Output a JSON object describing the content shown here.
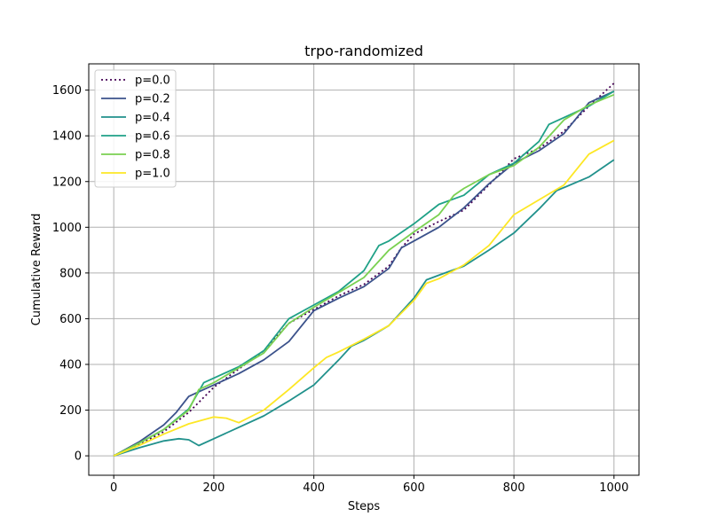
{
  "chart_data": {
    "type": "line",
    "title": "trpo-randomized",
    "xlabel": "Steps",
    "ylabel": "Cumulative Reward",
    "xlim": [
      -50,
      1050
    ],
    "ylim": [
      -85,
      1715
    ],
    "xticks": [
      0,
      200,
      400,
      600,
      800,
      1000
    ],
    "yticks": [
      0,
      200,
      400,
      600,
      800,
      1000,
      1200,
      1400,
      1600
    ],
    "grid": true,
    "legend_position": "top-left",
    "series": [
      {
        "name": "p=0.0",
        "color": "#440154",
        "style": "dotted",
        "x": [
          0,
          50,
          100,
          150,
          200,
          250,
          300,
          350,
          400,
          450,
          500,
          550,
          575,
          600,
          650,
          700,
          750,
          800,
          850,
          900,
          950,
          1000
        ],
        "y": [
          0,
          50,
          105,
          190,
          300,
          380,
          460,
          580,
          640,
          700,
          750,
          830,
          910,
          970,
          1025,
          1075,
          1185,
          1300,
          1345,
          1420,
          1530,
          1630
        ]
      },
      {
        "name": "p=0.2",
        "color": "#3b528b",
        "style": "solid",
        "x": [
          0,
          50,
          100,
          125,
          150,
          175,
          200,
          250,
          300,
          350,
          400,
          450,
          500,
          550,
          575,
          600,
          650,
          700,
          750,
          800,
          850,
          900,
          950,
          1000
        ],
        "y": [
          0,
          60,
          135,
          190,
          260,
          285,
          310,
          360,
          420,
          500,
          635,
          690,
          740,
          820,
          910,
          940,
          1000,
          1085,
          1190,
          1280,
          1335,
          1410,
          1545,
          1595
        ]
      },
      {
        "name": "p=0.4",
        "color": "#21918c",
        "style": "solid",
        "x": [
          0,
          50,
          100,
          130,
          150,
          170,
          200,
          250,
          300,
          350,
          400,
          425,
          450,
          475,
          500,
          550,
          600,
          625,
          650,
          700,
          750,
          800,
          850,
          885,
          950,
          1000
        ],
        "y": [
          0,
          35,
          65,
          75,
          70,
          45,
          75,
          125,
          175,
          240,
          310,
          365,
          420,
          480,
          505,
          570,
          690,
          770,
          790,
          830,
          900,
          975,
          1080,
          1160,
          1220,
          1295
        ]
      },
      {
        "name": "p=0.6",
        "color": "#1fa187",
        "style": "solid",
        "x": [
          0,
          50,
          100,
          150,
          180,
          200,
          250,
          300,
          350,
          400,
          450,
          500,
          530,
          550,
          600,
          650,
          700,
          750,
          800,
          850,
          870,
          900,
          950,
          1000
        ],
        "y": [
          0,
          55,
          115,
          205,
          320,
          340,
          390,
          460,
          600,
          660,
          720,
          810,
          920,
          940,
          1015,
          1100,
          1140,
          1230,
          1280,
          1375,
          1450,
          1480,
          1530,
          1595
        ]
      },
      {
        "name": "p=0.8",
        "color": "#7ad151",
        "style": "solid",
        "x": [
          0,
          50,
          100,
          150,
          170,
          200,
          250,
          300,
          350,
          400,
          450,
          500,
          550,
          600,
          650,
          680,
          700,
          750,
          800,
          850,
          900,
          950,
          1000
        ],
        "y": [
          0,
          55,
          115,
          200,
          290,
          320,
          385,
          450,
          580,
          650,
          715,
          780,
          900,
          980,
          1055,
          1140,
          1170,
          1230,
          1270,
          1350,
          1470,
          1535,
          1580
        ]
      },
      {
        "name": "p=1.0",
        "color": "#fde725",
        "style": "solid",
        "x": [
          0,
          50,
          100,
          150,
          200,
          225,
          250,
          300,
          350,
          400,
          425,
          450,
          500,
          550,
          600,
          625,
          650,
          700,
          750,
          800,
          850,
          900,
          950,
          1000
        ],
        "y": [
          0,
          45,
          95,
          140,
          170,
          165,
          145,
          200,
          290,
          385,
          430,
          455,
          510,
          570,
          680,
          755,
          775,
          835,
          920,
          1055,
          1120,
          1185,
          1320,
          1380
        ]
      }
    ]
  }
}
